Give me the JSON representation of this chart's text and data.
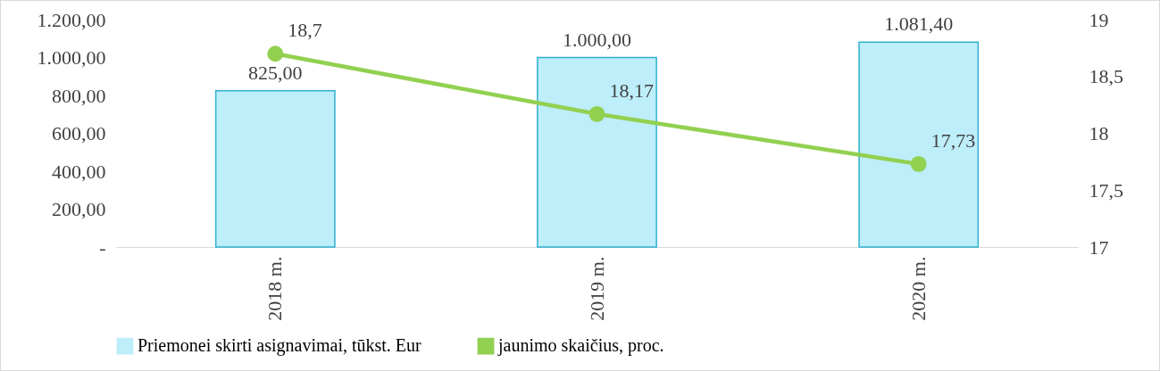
{
  "chart_data": {
    "type": "bar",
    "categories": [
      "2018 m.",
      "2019 m.",
      "2020 m."
    ],
    "series": [
      {
        "name": "Priemonei skirti asignavimai, tūkst. Eur",
        "color": "#bdeefa",
        "values": [
          825,
          1000,
          1081.4
        ],
        "value_labels": [
          "825,00",
          "1.000,00",
          "1.081,40"
        ]
      },
      {
        "name": "jaunimo skaičius, proc.",
        "type": "line",
        "axis": "y2",
        "color": "#92d050",
        "values": [
          18.7,
          18.17,
          17.73
        ],
        "value_labels": [
          "18,7",
          "18,17",
          "17,73"
        ],
        "marker": "circle"
      }
    ],
    "ylim": [
      0,
      1200
    ],
    "yticks": [
      {
        "value": 0,
        "label": "-"
      },
      {
        "value": 200,
        "label": "200,00"
      },
      {
        "value": 400,
        "label": "400,00"
      },
      {
        "value": 600,
        "label": "600,00"
      },
      {
        "value": 800,
        "label": "800,00"
      },
      {
        "value": 1000,
        "label": "1.000,00"
      },
      {
        "value": 1200,
        "label": "1.200,00"
      }
    ],
    "y2lim": [
      17,
      19
    ],
    "y2ticks": [
      17,
      {
        "value": 17.5,
        "label": "17,5"
      },
      18,
      {
        "value": 18.5,
        "label": "18,5"
      },
      19
    ],
    "legend": "bottom"
  }
}
